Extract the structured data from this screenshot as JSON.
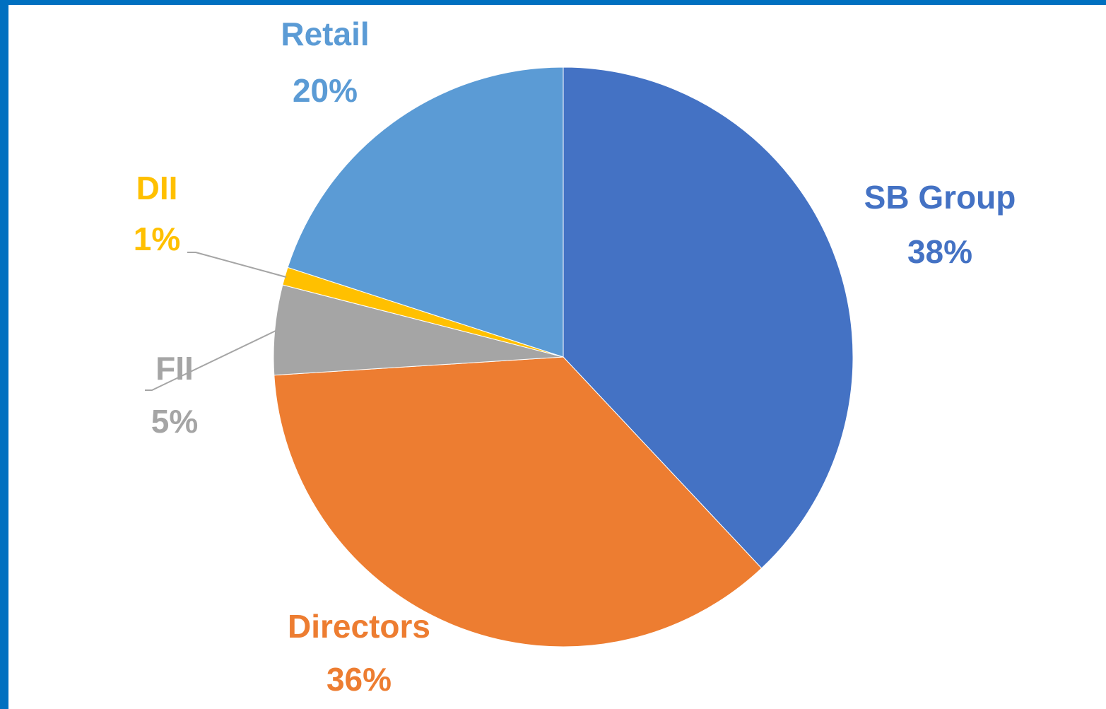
{
  "chart_data": {
    "type": "pie",
    "categories": [
      "SB Group",
      "Directors",
      "FII",
      "DII",
      "Retail"
    ],
    "values": [
      38,
      36,
      5,
      1,
      20
    ],
    "value_labels": [
      "38%",
      "36%",
      "5%",
      "1%",
      "20%"
    ],
    "colors": [
      "#4472c4",
      "#ed7d31",
      "#a5a5a5",
      "#ffc000",
      "#5b9bd5"
    ],
    "start_angle": 0,
    "direction": "clockwise"
  }
}
